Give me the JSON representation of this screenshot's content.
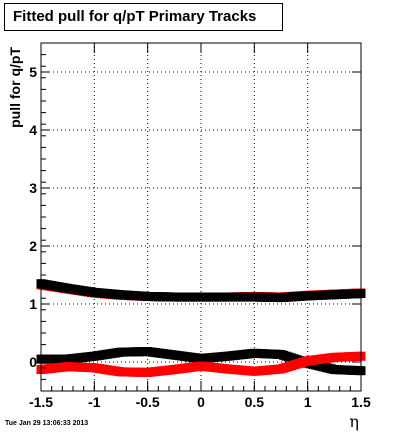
{
  "title": "Fitted pull for q/pT  Primary Tracks",
  "footer": "Tue Jan 29 13:06:33 2013",
  "chart_data": {
    "type": "scatter",
    "title": "Fitted pull for q/pT  Primary Tracks",
    "xlabel": "η",
    "ylabel": "pull for q/pT",
    "xlim": [
      -1.5,
      1.5
    ],
    "ylim": [
      -0.5,
      5.5
    ],
    "x_ticks": [
      -1.5,
      -1,
      -0.5,
      0,
      0.5,
      1,
      1.5
    ],
    "y_ticks": [
      0,
      1,
      2,
      3,
      4,
      5
    ],
    "x_tick_labels": [
      "-1.5",
      "-1",
      "-0.5",
      "0",
      "0.5",
      "1",
      "1.5"
    ],
    "y_tick_labels": [
      "0",
      "1",
      "2",
      "3",
      "4",
      "5"
    ],
    "grid": true,
    "legend": "none",
    "series": [
      {
        "color": "#ff0000",
        "x": [
          -1.5,
          -1.25,
          -1.0,
          -0.75,
          -0.5,
          -0.25,
          0.0,
          0.25,
          0.5,
          0.75,
          1.0,
          1.25,
          1.5
        ],
        "values": [
          1.33,
          1.26,
          1.19,
          1.15,
          1.13,
          1.12,
          1.12,
          1.12,
          1.13,
          1.12,
          1.15,
          1.17,
          1.19
        ]
      },
      {
        "color": "#000000",
        "x": [
          -1.5,
          -1.25,
          -1.0,
          -0.75,
          -0.5,
          -0.25,
          0.0,
          0.25,
          0.5,
          0.75,
          1.0,
          1.25,
          1.5
        ],
        "values": [
          1.35,
          1.27,
          1.2,
          1.16,
          1.13,
          1.12,
          1.12,
          1.12,
          1.12,
          1.11,
          1.14,
          1.16,
          1.18
        ]
      },
      {
        "color": "#000000",
        "x": [
          -1.5,
          -1.25,
          -1.0,
          -0.75,
          -0.5,
          -0.25,
          0.0,
          0.25,
          0.5,
          0.75,
          1.0,
          1.25,
          1.5
        ],
        "values": [
          0.05,
          0.05,
          0.1,
          0.17,
          0.18,
          0.12,
          0.06,
          0.1,
          0.15,
          0.13,
          -0.02,
          -0.13,
          -0.15
        ]
      },
      {
        "color": "#ff0000",
        "x": [
          -1.5,
          -1.25,
          -1.0,
          -0.75,
          -0.5,
          -0.25,
          0.0,
          0.25,
          0.5,
          0.75,
          1.0,
          1.25,
          1.5
        ],
        "values": [
          -0.13,
          -0.08,
          -0.1,
          -0.17,
          -0.18,
          -0.13,
          -0.07,
          -0.12,
          -0.16,
          -0.12,
          0.02,
          0.08,
          0.1
        ]
      }
    ]
  }
}
